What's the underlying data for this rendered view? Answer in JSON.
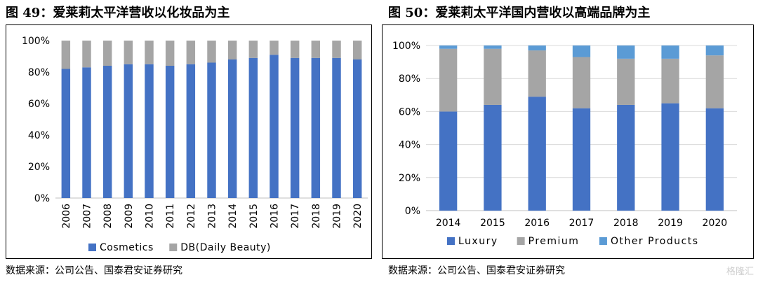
{
  "left": {
    "title": "图 49：爱莱莉太平洋营收以化妆品为主",
    "source": "数据来源：公司公告、国泰君安证券研究"
  },
  "right": {
    "title": "图 50：爱莱莉太平洋国内营收以高端品牌为主",
    "source": "数据来源：公司公告、国泰君安证券研究"
  },
  "watermark": "格隆汇",
  "chart_data": [
    {
      "type": "bar",
      "stacked": true,
      "percent": true,
      "categories": [
        "2006",
        "2007",
        "2008",
        "2009",
        "2010",
        "2011",
        "2012",
        "2013",
        "2014",
        "2015",
        "2016",
        "2017",
        "2018",
        "2019",
        "2020"
      ],
      "series": [
        {
          "name": "Cosmetics",
          "color": "#4472c4",
          "values": [
            82,
            83,
            84,
            85,
            85,
            84,
            85,
            86,
            88,
            89,
            91,
            89,
            89,
            89,
            88
          ]
        },
        {
          "name": "DB(Daily Beauty)",
          "color": "#a5a5a5",
          "values": [
            18,
            17,
            16,
            15,
            15,
            16,
            15,
            14,
            12,
            11,
            9,
            11,
            11,
            11,
            12
          ]
        }
      ],
      "yticks": [
        "0%",
        "20%",
        "40%",
        "60%",
        "80%",
        "100%"
      ],
      "ylim": [
        0,
        100
      ],
      "x_tick_rotation": "vertical",
      "legend_position": "bottom",
      "grid": false
    },
    {
      "type": "bar",
      "stacked": true,
      "percent": true,
      "categories": [
        "2014",
        "2015",
        "2016",
        "2017",
        "2018",
        "2019",
        "2020"
      ],
      "series": [
        {
          "name": "Luxury",
          "color": "#4472c4",
          "values": [
            60,
            64,
            69,
            62,
            64,
            65,
            62
          ]
        },
        {
          "name": "Premium",
          "color": "#a5a5a5",
          "values": [
            38,
            34,
            28,
            31,
            28,
            27,
            32
          ]
        },
        {
          "name": "Other Products",
          "color": "#5b9bd5",
          "values": [
            2,
            2,
            3,
            7,
            8,
            8,
            6
          ]
        }
      ],
      "yticks": [
        "0%",
        "20%",
        "40%",
        "60%",
        "80%",
        "100%"
      ],
      "ylim": [
        0,
        100
      ],
      "legend_position": "bottom",
      "grid": true
    }
  ]
}
